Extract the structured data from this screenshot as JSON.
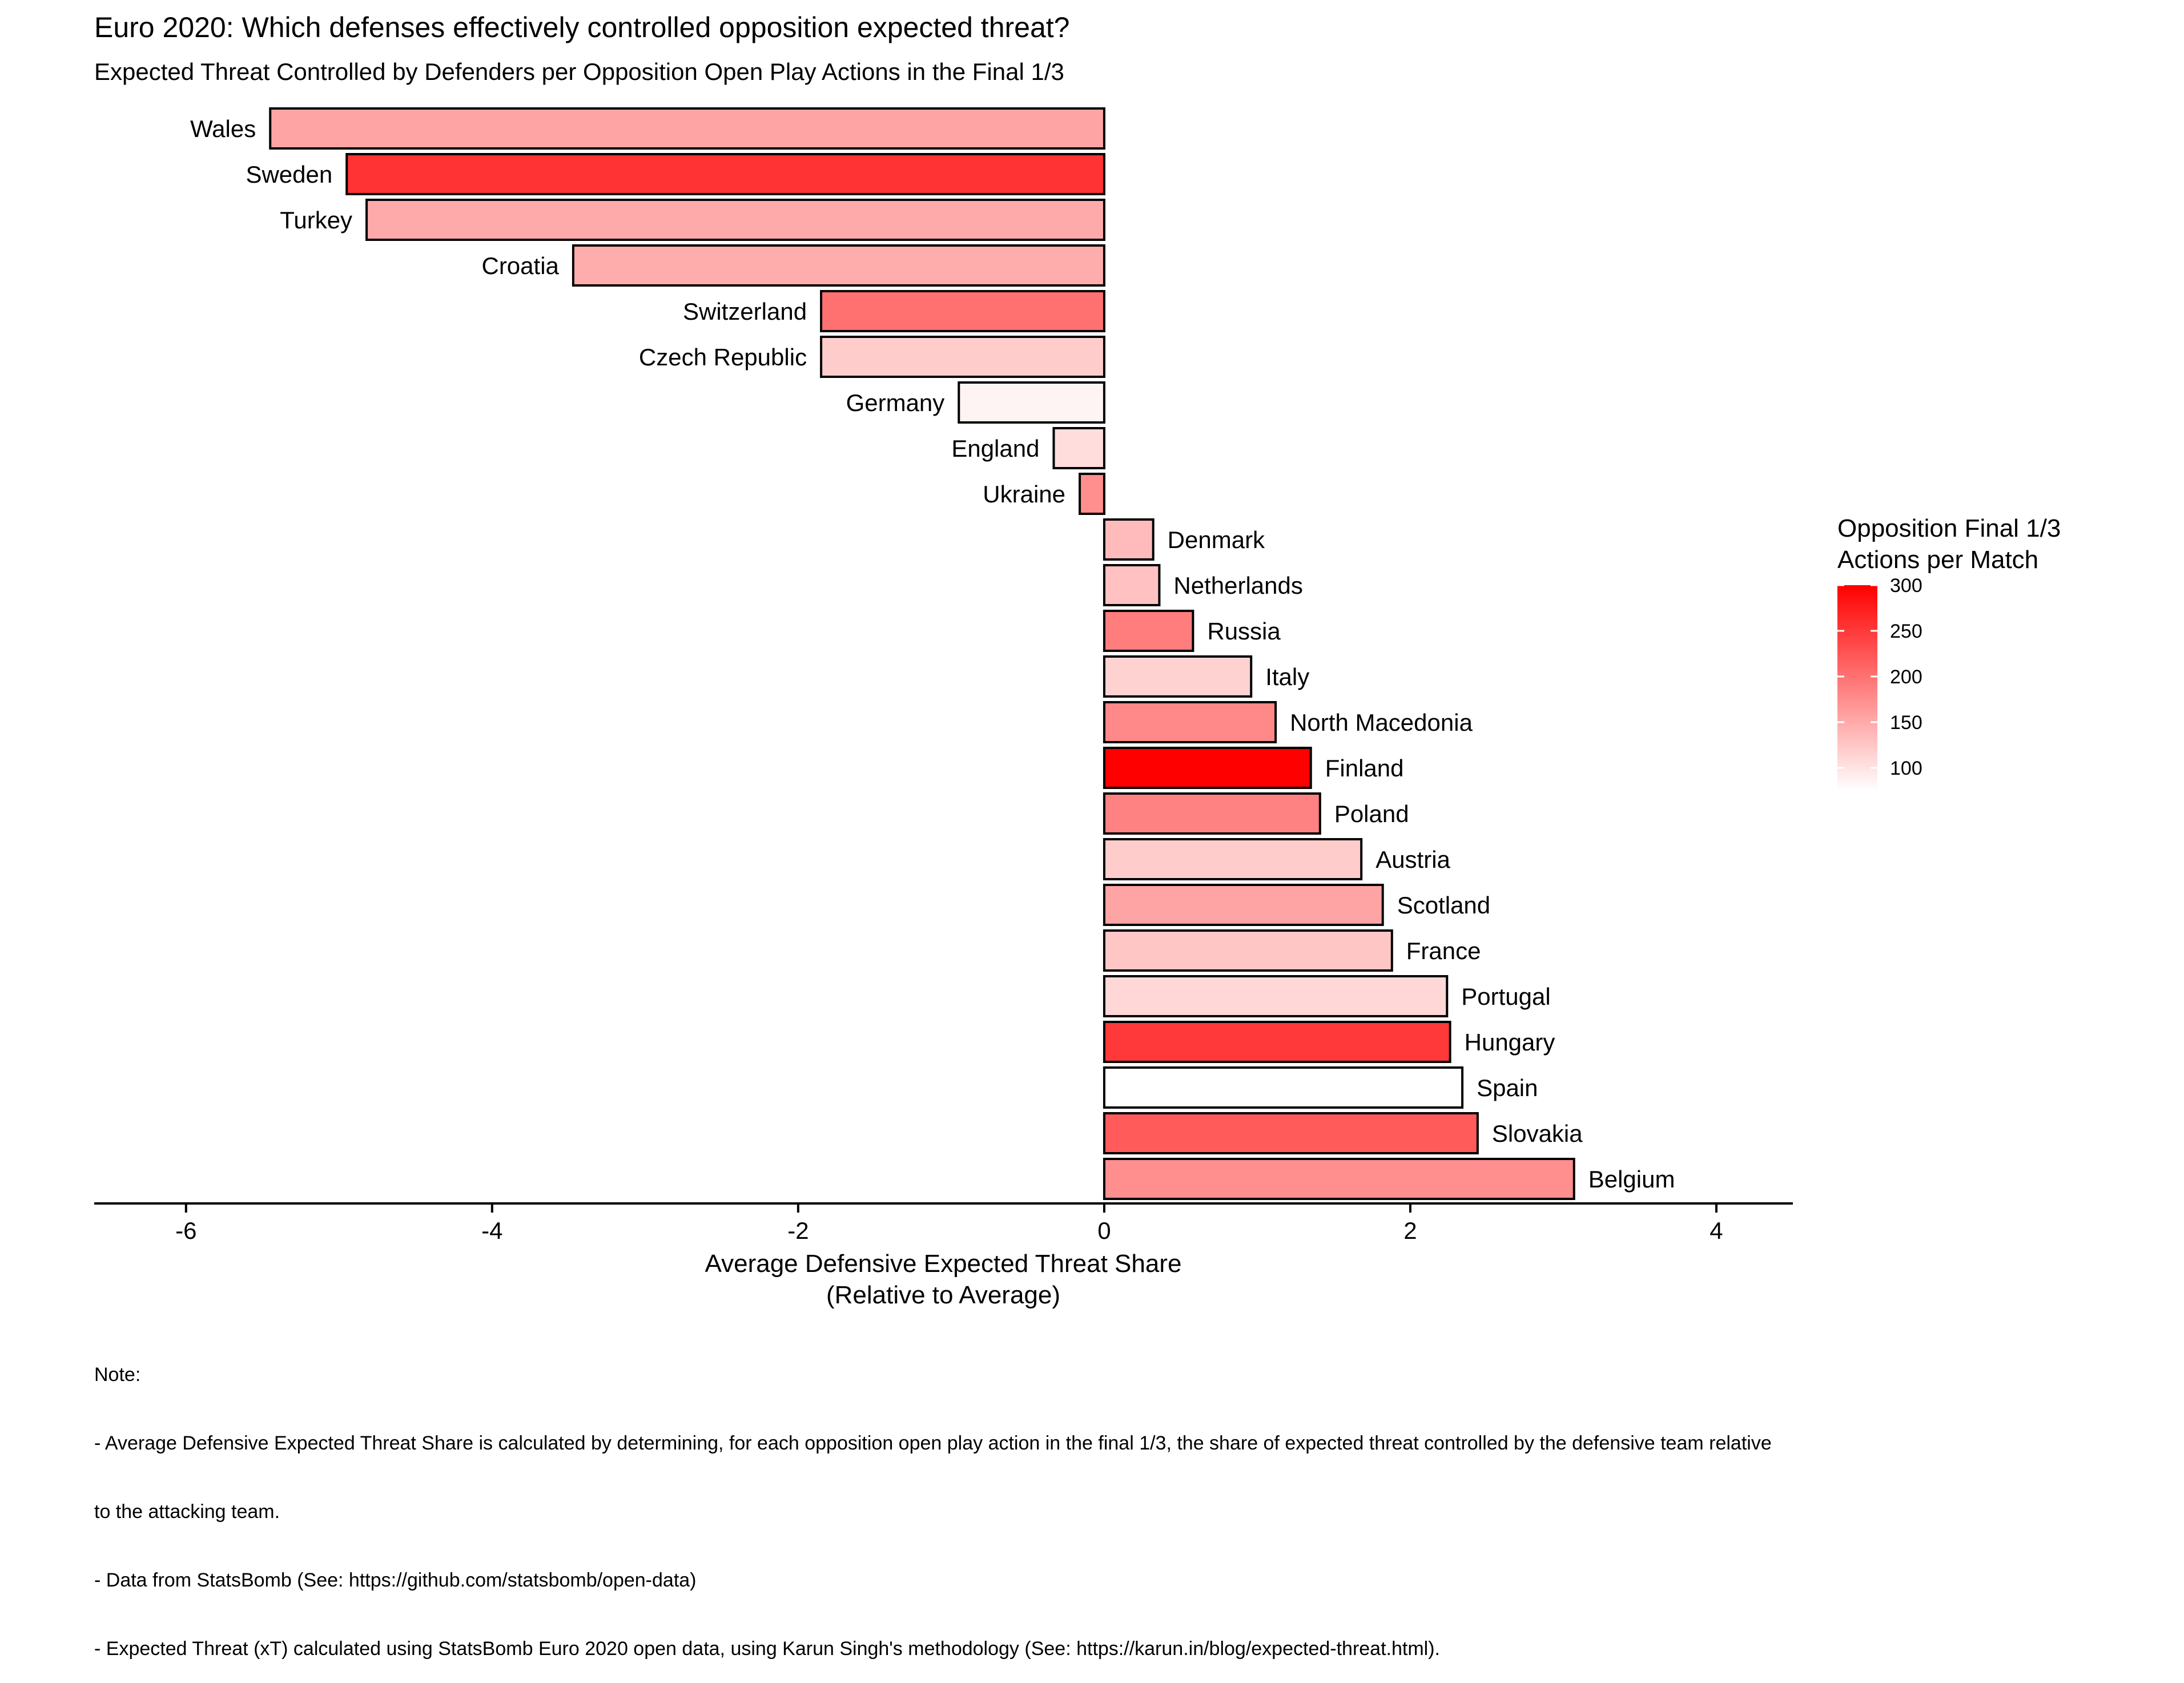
{
  "chart_data": {
    "type": "bar",
    "orientation": "horizontal",
    "title": "Euro 2020: Which defenses effectively controlled opposition expected threat?",
    "subtitle": "Expected Threat Controlled by Defenders per Opposition Open Play Actions in the Final 1/3",
    "xlabel_line1": "Average Defensive Expected Threat Share",
    "xlabel_line2": "(Relative to Average)",
    "xlim": [
      -6.6,
      4.5
    ],
    "xticks": [
      -6,
      -4,
      -2,
      0,
      2,
      4
    ],
    "xtick_labels": [
      "-6",
      "-4",
      "-2",
      "0",
      "2",
      "4"
    ],
    "grid": false,
    "legend_position": "right",
    "legend": {
      "title_line1": "Opposition Final 1/3",
      "title_line2": "Actions per Match",
      "min": 75,
      "max": 300,
      "low_color": "#ffffff",
      "high_color": "#ff0000",
      "ticks": [
        100,
        150,
        200,
        250,
        300
      ],
      "tick_labels": [
        "100",
        "150",
        "200",
        "250",
        "300"
      ]
    },
    "categories": [
      "Wales",
      "Sweden",
      "Turkey",
      "Croatia",
      "Switzerland",
      "Czech Republic",
      "Germany",
      "England",
      "Ukraine",
      "Denmark",
      "Netherlands",
      "Russia",
      "Italy",
      "North Macedonia",
      "Finland",
      "Poland",
      "Austria",
      "Scotland",
      "France",
      "Portugal",
      "Hungary",
      "Spain",
      "Slovakia",
      "Belgium"
    ],
    "values": [
      -5.45,
      -4.95,
      -4.82,
      -3.47,
      -1.85,
      -1.85,
      -0.95,
      -0.33,
      -0.16,
      0.32,
      0.36,
      0.58,
      0.96,
      1.12,
      1.35,
      1.41,
      1.68,
      1.82,
      1.88,
      2.24,
      2.26,
      2.34,
      2.44,
      3.07
    ],
    "actions_per_match": [
      155,
      255,
      150,
      148,
      200,
      120,
      85,
      105,
      175,
      135,
      130,
      190,
      115,
      180,
      300,
      185,
      120,
      155,
      125,
      110,
      250,
      75,
      220,
      175
    ]
  },
  "notes": [
    "Note:",
    "- Average Defensive Expected Threat Share is calculated by determining, for each opposition open play action in the final 1/3, the share of expected threat controlled by the defensive team relative",
    "to the attacking team.",
    "- Data from StatsBomb (See: https://github.com/statsbomb/open-data)",
    "- Expected Threat (xT) calculated using StatsBomb Euro 2020 open data, using Karun Singh's methodology (See: https://karun.in/blog/expected-threat.html)."
  ]
}
